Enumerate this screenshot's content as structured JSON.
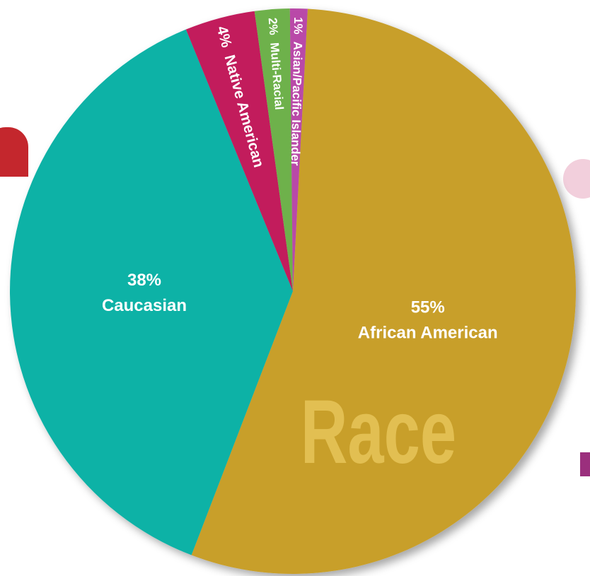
{
  "chart_data": {
    "type": "pie",
    "title": "Race",
    "slices": [
      {
        "label": "African American",
        "value": 55,
        "value_label": "55%",
        "color": "#c89f2c"
      },
      {
        "label": "Caucasian",
        "value": 38,
        "value_label": "38%",
        "color": "#11b2a6"
      },
      {
        "label": "Native American",
        "value": 4,
        "value_label": "4%",
        "color": "#c21c5c"
      },
      {
        "label": "Multi-Racial",
        "value": 2,
        "value_label": "2%",
        "color": "#6eb14c"
      },
      {
        "label": "Asian/Pacific Islander",
        "value": 1,
        "value_label": "1%",
        "color": "#b94aa8"
      }
    ]
  },
  "colors": {
    "background": "#ffffff",
    "watermark": "#e2bf52",
    "label_text": "#ffffff"
  }
}
